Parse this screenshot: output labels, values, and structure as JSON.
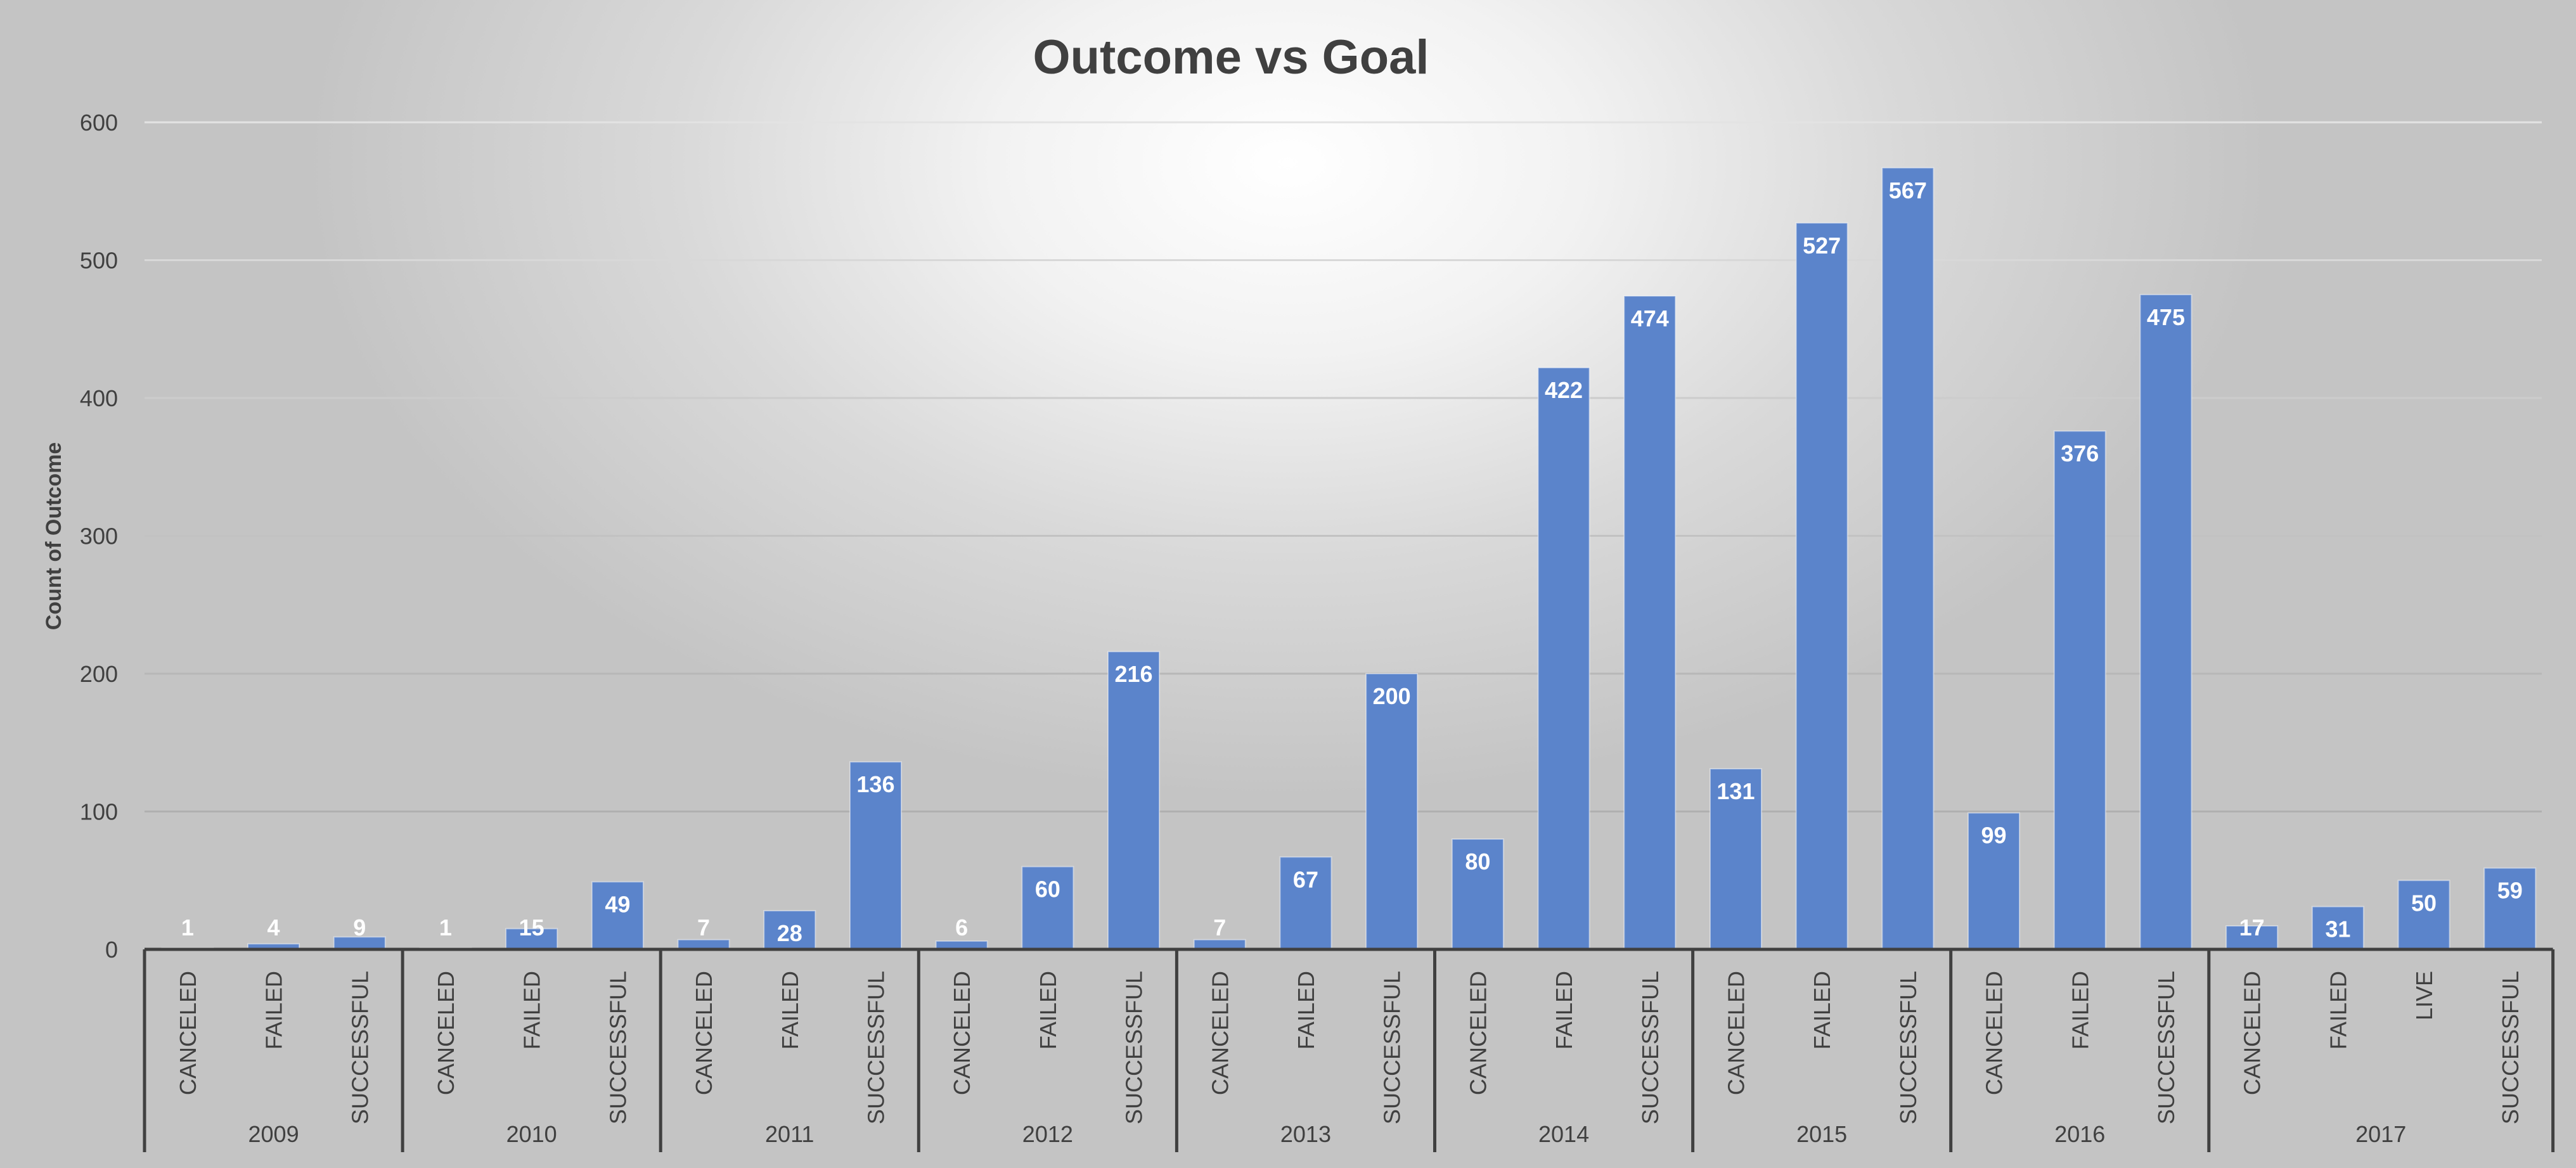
{
  "chart_data": {
    "type": "bar",
    "title": "Outcome vs Goal",
    "ylabel": "Count of Outcome",
    "xlabel": "",
    "ylim": [
      0,
      600
    ],
    "yticks": [
      0,
      100,
      200,
      300,
      400,
      500,
      600
    ],
    "grid": true,
    "legend": "none",
    "bar_color": "#5b84cb",
    "groups": [
      {
        "year": "2009",
        "bars": [
          {
            "outcome": "CANCELED",
            "value": 1
          },
          {
            "outcome": "FAILED",
            "value": 4
          },
          {
            "outcome": "SUCCESSFUL",
            "value": 9
          }
        ]
      },
      {
        "year": "2010",
        "bars": [
          {
            "outcome": "CANCELED",
            "value": 1
          },
          {
            "outcome": "FAILED",
            "value": 15
          },
          {
            "outcome": "SUCCESSFUL",
            "value": 49
          }
        ]
      },
      {
        "year": "2011",
        "bars": [
          {
            "outcome": "CANCELED",
            "value": 7
          },
          {
            "outcome": "FAILED",
            "value": 28
          },
          {
            "outcome": "SUCCESSFUL",
            "value": 136
          }
        ]
      },
      {
        "year": "2012",
        "bars": [
          {
            "outcome": "CANCELED",
            "value": 6
          },
          {
            "outcome": "FAILED",
            "value": 60
          },
          {
            "outcome": "SUCCESSFUL",
            "value": 216
          }
        ]
      },
      {
        "year": "2013",
        "bars": [
          {
            "outcome": "CANCELED",
            "value": 7
          },
          {
            "outcome": "FAILED",
            "value": 67
          },
          {
            "outcome": "SUCCESSFUL",
            "value": 200
          }
        ]
      },
      {
        "year": "2014",
        "bars": [
          {
            "outcome": "CANCELED",
            "value": 80
          },
          {
            "outcome": "FAILED",
            "value": 422
          },
          {
            "outcome": "SUCCESSFUL",
            "value": 474
          }
        ]
      },
      {
        "year": "2015",
        "bars": [
          {
            "outcome": "CANCELED",
            "value": 131
          },
          {
            "outcome": "FAILED",
            "value": 527
          },
          {
            "outcome": "SUCCESSFUL",
            "value": 567
          }
        ]
      },
      {
        "year": "2016",
        "bars": [
          {
            "outcome": "CANCELED",
            "value": 99
          },
          {
            "outcome": "FAILED",
            "value": 376
          },
          {
            "outcome": "SUCCESSFUL",
            "value": 475
          }
        ]
      },
      {
        "year": "2017",
        "bars": [
          {
            "outcome": "CANCELED",
            "value": 17
          },
          {
            "outcome": "FAILED",
            "value": 31
          },
          {
            "outcome": "LIVE",
            "value": 50
          },
          {
            "outcome": "SUCCESSFUL",
            "value": 59
          }
        ]
      }
    ]
  }
}
